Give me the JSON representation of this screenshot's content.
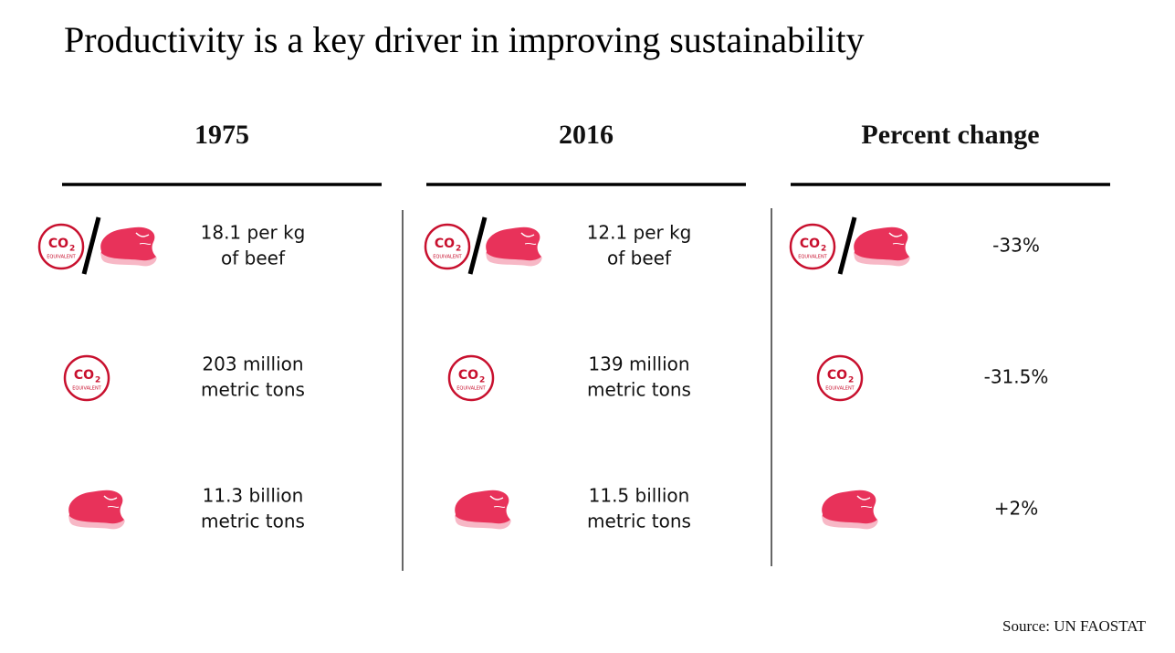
{
  "title": "Productivity is a key driver in improving sustainability",
  "icon_text": {
    "co": "CO",
    "sub": "2",
    "label": "EQUIVALENT"
  },
  "columns": [
    {
      "heading": "1975",
      "cells": [
        [
          "18.1 per kg",
          "of beef"
        ],
        [
          "203 million",
          "metric tons"
        ],
        [
          "11.3 billion",
          "metric tons"
        ]
      ]
    },
    {
      "heading": "2016",
      "cells": [
        [
          "12.1 per kg",
          "of beef"
        ],
        [
          "139 million",
          "metric tons"
        ],
        [
          "11.5 billion",
          "metric tons"
        ]
      ]
    },
    {
      "heading": "Percent change",
      "cells": [
        [
          "-33%"
        ],
        [
          "-31.5%"
        ],
        [
          "+2%"
        ]
      ]
    }
  ],
  "source": "Source: UN FAOSTAT"
}
